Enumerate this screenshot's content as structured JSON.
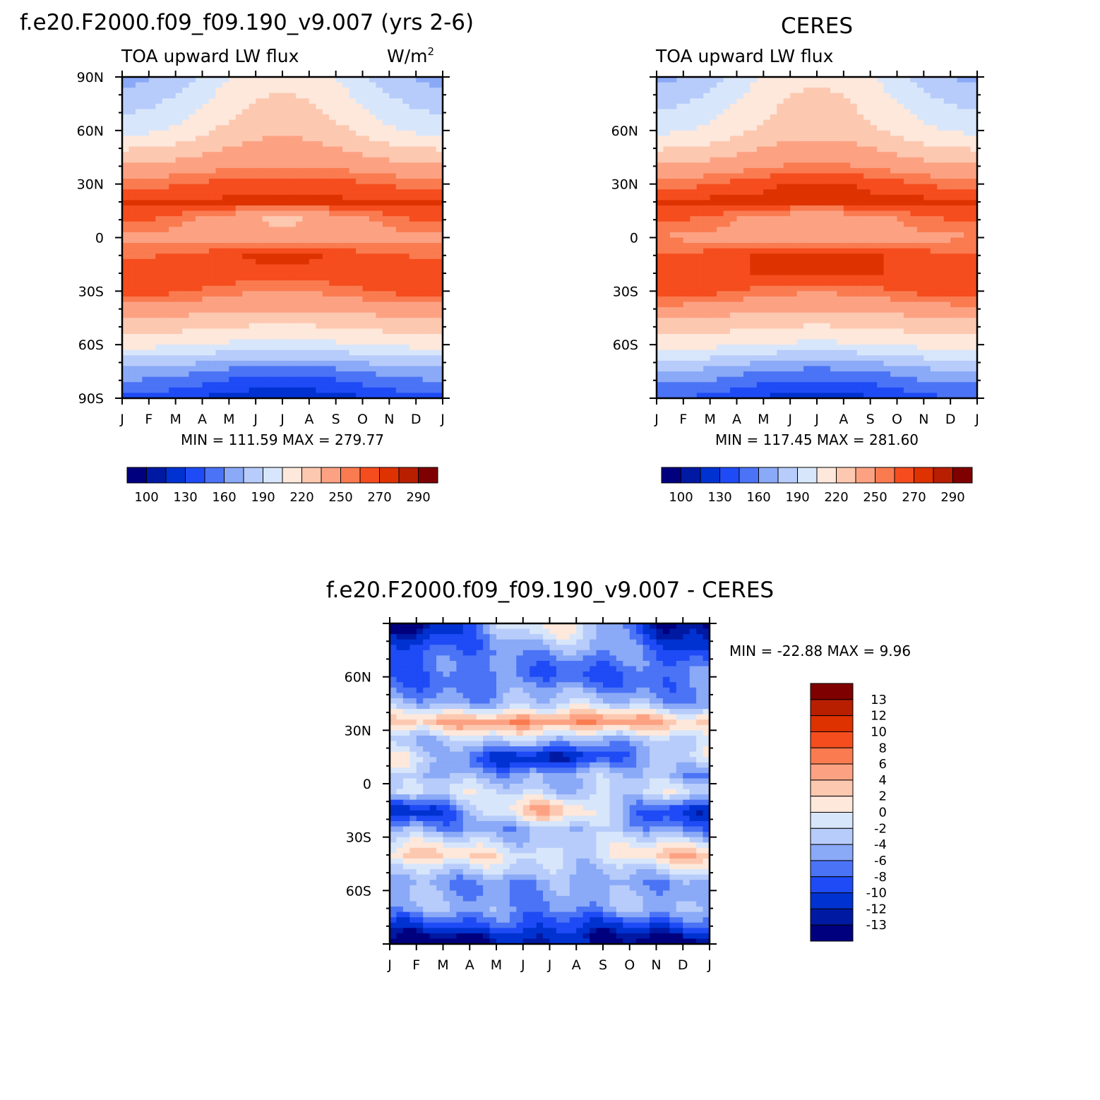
{
  "figure": {
    "panel1_title": "f.e20.F2000.f09_f09.190_v9.007 (yrs 2-6)",
    "panel2_title": "CERES",
    "panel3_title": "f.e20.F2000.f09_f09.190_v9.007 - CERES",
    "variable_label": "TOA upward LW flux",
    "units_label": "W/m",
    "units_superscript": "2"
  },
  "chart_data": [
    {
      "id": "model",
      "type": "heatmap",
      "title": "f.e20.F2000.f09_f09.190_v9.007 (yrs 2-6)",
      "subtitle_left": "TOA upward LW flux",
      "subtitle_right": "W/m2",
      "x_ticks": [
        "J",
        "F",
        "M",
        "A",
        "M",
        "J",
        "J",
        "A",
        "S",
        "O",
        "N",
        "D",
        "J"
      ],
      "y_ticks": [
        "90N",
        "60N",
        "30N",
        "0",
        "30S",
        "60S",
        "90S"
      ],
      "ylim": [
        -90,
        90
      ],
      "stats": {
        "min_label": "MIN =",
        "min": "111.59",
        "max_label": "MAX =",
        "max": "279.77"
      },
      "colorbar": {
        "labels": [
          "100",
          "130",
          "160",
          "190",
          "220",
          "250",
          "270",
          "290"
        ],
        "colors": [
          "#00007f",
          "#0019a3",
          "#0032d1",
          "#1e4bf5",
          "#4b73f5",
          "#8aa9f7",
          "#b7ccfa",
          "#d8e6fb",
          "#fde8db",
          "#fdc8b0",
          "#fca283",
          "#fa7b50",
          "#f54d1e",
          "#de3200",
          "#b81e00",
          "#7f0000"
        ]
      },
      "profile_lat": [
        90,
        60,
        40,
        30,
        20,
        10,
        0,
        -10,
        -20,
        -30,
        -40,
        -60,
        -75,
        -90
      ],
      "profile_jan": [
        170,
        200,
        238,
        255,
        272,
        262,
        245,
        258,
        270,
        266,
        244,
        210,
        170,
        140
      ],
      "profile_jul": [
        215,
        232,
        250,
        268,
        272,
        232,
        242,
        272,
        268,
        250,
        236,
        200,
        150,
        118
      ]
    },
    {
      "id": "ceres",
      "type": "heatmap",
      "title": "CERES",
      "subtitle_left": "TOA upward LW flux",
      "x_ticks": [
        "J",
        "F",
        "M",
        "A",
        "M",
        "J",
        "J",
        "A",
        "S",
        "O",
        "N",
        "D",
        "J"
      ],
      "y_ticks": [
        "60N",
        "30N",
        "0",
        "30S",
        "60S"
      ],
      "ylim": [
        -90,
        90
      ],
      "stats": {
        "min_label": "MIN =",
        "min": "117.45",
        "max_label": "MAX =",
        "max": "281.60"
      },
      "colorbar": {
        "labels": [
          "100",
          "130",
          "160",
          "190",
          "220",
          "250",
          "270",
          "290"
        ],
        "colors": [
          "#00007f",
          "#0019a3",
          "#0032d1",
          "#1e4bf5",
          "#4b73f5",
          "#8aa9f7",
          "#b7ccfa",
          "#d8e6fb",
          "#fde8db",
          "#fdc8b0",
          "#fca283",
          "#fa7b50",
          "#f54d1e",
          "#de3200",
          "#b81e00",
          "#7f0000"
        ]
      },
      "profile_lat": [
        90,
        60,
        40,
        30,
        20,
        10,
        0,
        -10,
        -20,
        -30,
        -40,
        -60,
        -75,
        -90
      ],
      "profile_jan": [
        172,
        202,
        236,
        255,
        274,
        262,
        248,
        262,
        270,
        268,
        245,
        212,
        175,
        145
      ],
      "profile_jul": [
        218,
        230,
        252,
        272,
        272,
        236,
        244,
        275,
        270,
        252,
        236,
        202,
        155,
        122
      ]
    },
    {
      "id": "difference",
      "type": "heatmap",
      "title": "f.e20.F2000.f09_f09.190_v9.007 - CERES",
      "x_ticks": [
        "J",
        "F",
        "M",
        "A",
        "M",
        "J",
        "J",
        "A",
        "S",
        "O",
        "N",
        "D",
        "J"
      ],
      "y_ticks": [
        "60N",
        "30N",
        "0",
        "30S",
        "60S"
      ],
      "ylim": [
        -90,
        90
      ],
      "stats": {
        "min_label": "MIN =",
        "min": "-22.88",
        "max_label": "MAX =",
        "max": "9.96"
      },
      "colorbar": {
        "labels": [
          "13",
          "12",
          "10",
          "8",
          "6",
          "4",
          "2",
          "0",
          "-2",
          "-4",
          "-6",
          "-8",
          "-10",
          "-12",
          "-13"
        ],
        "colors": [
          "#7f0000",
          "#b81e00",
          "#de3200",
          "#f54d1e",
          "#fa7b50",
          "#fca283",
          "#fdc8b0",
          "#fde8db",
          "#d8e6fb",
          "#b7ccfa",
          "#8aa9f7",
          "#4b73f5",
          "#1e4bf5",
          "#0032d1",
          "#0019a3",
          "#00007f"
        ]
      },
      "profile_lat": [
        90,
        75,
        60,
        45,
        35,
        25,
        15,
        5,
        -5,
        -15,
        -25,
        -40,
        -55,
        -70,
        -85,
        -90
      ],
      "profile_jan": [
        -14,
        -10,
        -7,
        -5,
        2,
        -3,
        1,
        -5,
        -2,
        -12,
        -6,
        3,
        -4,
        -5,
        -12,
        -14
      ],
      "profile_jul": [
        0,
        -4,
        -8,
        -3,
        7,
        -3,
        -14,
        -4,
        -2,
        3,
        -4,
        -1,
        -6,
        -5,
        -12,
        -13
      ]
    }
  ]
}
